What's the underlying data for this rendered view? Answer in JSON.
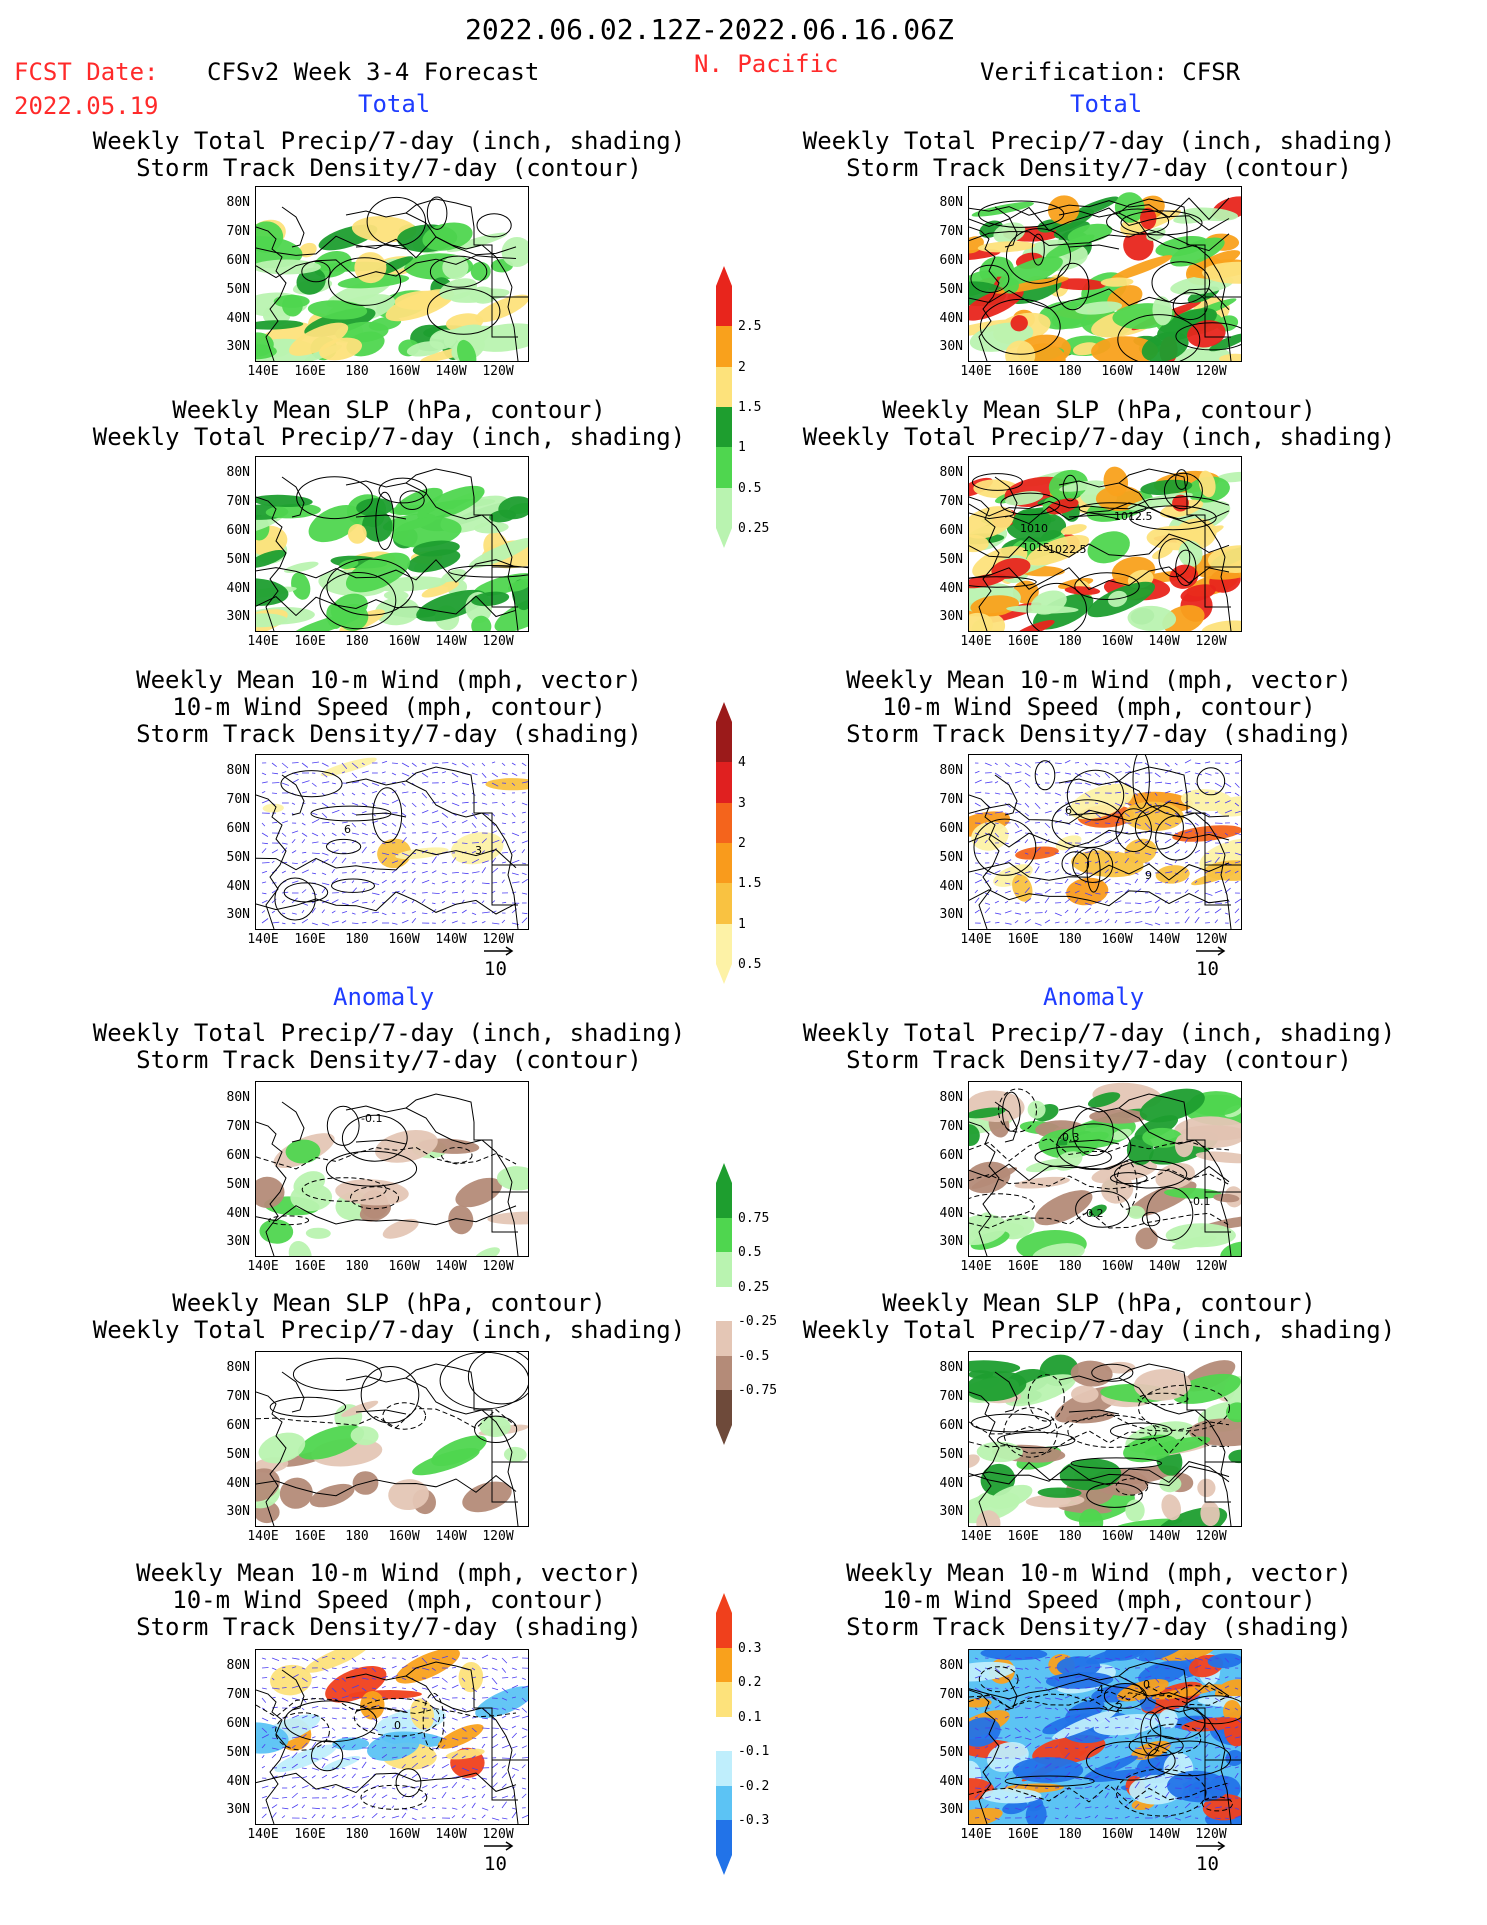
{
  "header": {
    "period": "2022.06.02.12Z-2022.06.16.06Z",
    "fcst_label": "FCST Date:",
    "fcst_date": "2022.05.19",
    "forecast_title": "CFSv2 Week 3-4 Forecast",
    "region": "N. Pacific",
    "verification": "Verification: CFSR"
  },
  "sections": {
    "total": "Total",
    "anomaly": "Anomaly"
  },
  "titles": {
    "precip_line1": "Weekly Total Precip/7-day (inch, shading)",
    "precip_line2": "Storm Track Density/7-day (contour)",
    "slp_line1": "Weekly Mean SLP (hPa, contour)",
    "slp_line2": "Weekly Total Precip/7-day (inch, shading)",
    "wind_line1": "Weekly Mean 10-m Wind (mph, vector)",
    "wind_line2": "10-m Wind Speed (mph, contour)",
    "wind_line3": "Storm Track Density/7-day (shading)"
  },
  "axes": {
    "lat_ticks": [
      "80N",
      "70N",
      "60N",
      "50N",
      "40N",
      "30N"
    ],
    "lon_ticks": [
      "140E",
      "160E",
      "180",
      "160W",
      "140W",
      "120W"
    ]
  },
  "vector_ref": "10",
  "contour_labels": {
    "slp_cfsr": [
      "1022.5",
      "1010",
      "1015",
      "1012.5"
    ],
    "precip_anom_fcst": [
      "-0.1"
    ],
    "precip_anom_cfsr": [
      "-0.2",
      "-0.3",
      "-0.1"
    ],
    "wind_fcst": [
      "6",
      "3"
    ],
    "wind_cfsr": [
      "6",
      "9"
    ],
    "wind_anom_fcst": [
      "0"
    ],
    "wind_anom_cfsr": [
      "2",
      "4",
      "0"
    ]
  },
  "colorbars": {
    "precip_total": {
      "labels": [
        "2.5",
        "2",
        "1.5",
        "1",
        "0.5",
        "0.25"
      ],
      "colors": [
        "#e8251c",
        "#f9a11c",
        "#fde27b",
        "#1e9e2f",
        "#4fd64f",
        "#b9f3b0"
      ]
    },
    "storm_total": {
      "labels": [
        "4",
        "3",
        "2",
        "1.5",
        "1",
        "0.5"
      ],
      "colors": [
        "#9b1a1a",
        "#e02020",
        "#f4641c",
        "#f99b1c",
        "#f9c241",
        "#fdf2a6"
      ]
    },
    "precip_anom": {
      "labels": [
        "0.75",
        "0.5",
        "0.25",
        "-0.25",
        "-0.5",
        "-0.75"
      ],
      "colors": [
        "#1e9e2f",
        "#4fd64f",
        "#b9f3b0",
        "#ffffff",
        "#e4c6b5",
        "#b48b78",
        "#6e4a3a"
      ]
    },
    "storm_anom": {
      "labels": [
        "0.3",
        "0.2",
        "0.1",
        "-0.1",
        "-0.2",
        "-0.3"
      ],
      "colors": [
        "#f0401c",
        "#f9a11c",
        "#fde27b",
        "#ffffff",
        "#bfeefc",
        "#5cc3f4",
        "#2273e8"
      ]
    }
  }
}
